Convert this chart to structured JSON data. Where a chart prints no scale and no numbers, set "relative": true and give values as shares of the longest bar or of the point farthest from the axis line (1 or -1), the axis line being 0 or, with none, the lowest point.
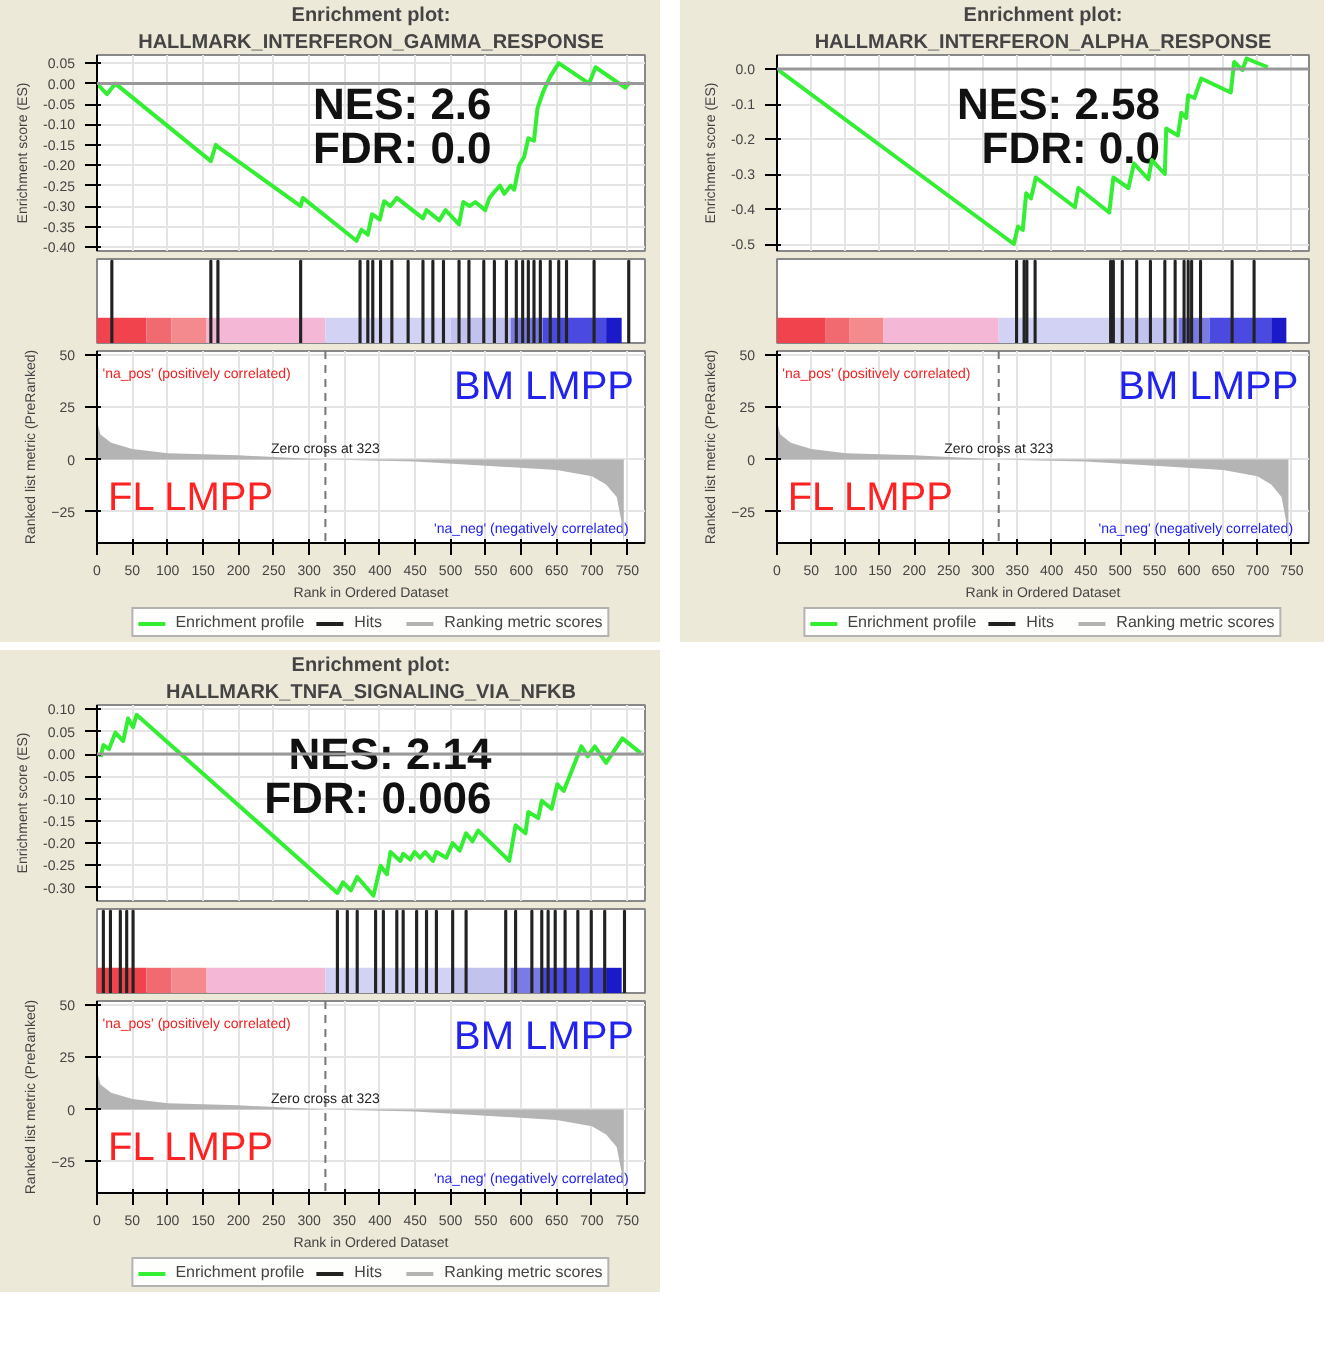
{
  "chart_data": [
    {
      "type": "line",
      "title": "Enrichment plot:",
      "subtitle": "HALLMARK_INTERFERON_GAMMA_RESPONSE",
      "ylabel": "Enrichment score (ES)",
      "xlim": [
        0,
        775
      ],
      "ylim": [
        -0.41,
        0.07
      ],
      "yticks": [
        {
          "value": 0.05,
          "label": "0.05"
        },
        {
          "value": 0,
          "label": "0.00"
        },
        {
          "value": -0.05,
          "label": "-0.05"
        },
        {
          "value": -0.1,
          "label": "-0.10"
        },
        {
          "value": -0.15,
          "label": "-0.15"
        },
        {
          "value": -0.2,
          "label": "-0.20"
        },
        {
          "value": -0.25,
          "label": "-0.25"
        },
        {
          "value": -0.3,
          "label": "-0.30"
        },
        {
          "value": -0.35,
          "label": "-0.35"
        },
        {
          "value": -0.4,
          "label": "-0.40"
        }
      ],
      "xticks": [
        0,
        50,
        100,
        150,
        200,
        250,
        300,
        350,
        400,
        450,
        500,
        550,
        600,
        650,
        700,
        750
      ],
      "tick_labels": "y",
      "grid": true,
      "annotations": [
        "NES: 2.6",
        "FDR: 0.0"
      ],
      "series": [
        {
          "name": "Enrichment profile",
          "color": "#33ee33",
          "x": [
            0,
            14,
            26,
            161,
            168,
            171,
            288,
            291,
            367,
            374,
            383,
            389,
            400,
            406,
            415,
            424,
            461,
            466,
            484,
            493,
            512,
            518,
            527,
            535,
            549,
            555,
            562,
            570,
            576,
            585,
            590,
            597,
            604,
            610,
            618,
            623,
            631,
            641,
            653,
            696,
            705,
            747,
            754
          ],
          "values": [
            0,
            -0.026,
            0,
            -0.19,
            -0.15,
            -0.155,
            -0.3,
            -0.28,
            -0.385,
            -0.358,
            -0.37,
            -0.32,
            -0.333,
            -0.288,
            -0.3,
            -0.28,
            -0.33,
            -0.31,
            -0.335,
            -0.31,
            -0.345,
            -0.29,
            -0.3,
            -0.29,
            -0.31,
            -0.28,
            -0.265,
            -0.25,
            -0.27,
            -0.25,
            -0.26,
            -0.2,
            -0.18,
            -0.134,
            -0.14,
            -0.06,
            -0.02,
            0.017,
            0.05,
            0,
            0.04,
            -0.01,
            0.004
          ]
        }
      ]
    },
    {
      "type": "bar",
      "relative": true,
      "xlim": [
        0,
        775
      ],
      "tick_labels": false,
      "bands": [
        {
          "axis": "x",
          "from": 0,
          "to": 70,
          "color": "#f0434d"
        },
        {
          "axis": "x",
          "from": 70,
          "to": 105,
          "color": "#f06a70"
        },
        {
          "axis": "x",
          "from": 105,
          "to": 155,
          "color": "#f48a8e"
        },
        {
          "axis": "x",
          "from": 155,
          "to": 323,
          "color": "#f5b7d6"
        },
        {
          "axis": "x",
          "from": 323,
          "to": 500,
          "color": "#d2d2f4"
        },
        {
          "axis": "x",
          "from": 500,
          "to": 585,
          "color": "#c2c2ef"
        },
        {
          "axis": "x",
          "from": 585,
          "to": 630,
          "color": "#7b7be6"
        },
        {
          "axis": "x",
          "from": 630,
          "to": 720,
          "color": "#4a4ae0"
        },
        {
          "axis": "x",
          "from": 720,
          "to": 742,
          "color": "#1a1ac8"
        }
      ],
      "series": [
        {
          "name": "Hits",
          "color": "#222222",
          "x": [
            21,
            161,
            171,
            288,
            372,
            383,
            390,
            401,
            417,
            440,
            461,
            475,
            490,
            512,
            526,
            547,
            562,
            579,
            593,
            602,
            610,
            618,
            627,
            641,
            653,
            664,
            703,
            752
          ],
          "values": [
            1,
            1,
            1,
            1,
            1,
            1,
            1,
            1,
            1,
            1,
            1,
            1,
            1,
            1,
            1,
            1,
            1,
            1,
            1,
            1,
            1,
            1,
            1,
            1,
            1,
            1,
            1,
            1
          ]
        }
      ]
    },
    {
      "type": "area",
      "xlabel": "Rank in Ordered Dataset",
      "ylabel": "Ranked list metric (PreRanked)",
      "xlim": [
        0,
        775
      ],
      "ylim": [
        -40,
        52
      ],
      "xticks": [
        0,
        50,
        100,
        150,
        200,
        250,
        300,
        350,
        400,
        450,
        500,
        550,
        600,
        650,
        700,
        750
      ],
      "yticks": [
        50,
        25,
        0,
        -25
      ],
      "grid": true,
      "legend": "bottom",
      "ref_lines": [
        {
          "axis": "x",
          "value": 323,
          "label": "Zero cross at 323",
          "line_style": "dashed"
        }
      ],
      "annotations": [
        "'na_pos' (positively correlated)",
        "'na_neg' (negatively correlated)",
        "FL LMPP",
        "BM LMPP"
      ],
      "series": [
        {
          "name": "Ranking metric scores",
          "color": "#b4b4b4",
          "x": [
            0,
            5,
            20,
            50,
            100,
            200,
            323,
            450,
            550,
            650,
            700,
            720,
            735,
            742,
            745
          ],
          "values": [
            18,
            12,
            8,
            5,
            3,
            2,
            0,
            -1,
            -3,
            -5,
            -8,
            -12,
            -18,
            -30,
            -40
          ]
        }
      ]
    },
    {
      "type": "line",
      "title": "Enrichment plot:",
      "subtitle": "HALLMARK_INTERFERON_ALPHA_RESPONSE",
      "ylabel": "Enrichment score (ES)",
      "xlim": [
        0,
        775
      ],
      "ylim": [
        -0.52,
        0.04
      ],
      "yticks": [
        {
          "value": 0,
          "label": "0.0"
        },
        {
          "value": -0.1,
          "label": "-0.1"
        },
        {
          "value": -0.2,
          "label": "-0.2"
        },
        {
          "value": -0.3,
          "label": "-0.3"
        },
        {
          "value": -0.4,
          "label": "-0.4"
        },
        {
          "value": -0.5,
          "label": "-0.5"
        }
      ],
      "xticks": [
        0,
        50,
        100,
        150,
        200,
        250,
        300,
        350,
        400,
        450,
        500,
        550,
        600,
        650,
        700,
        750
      ],
      "tick_labels": "y",
      "grid": true,
      "annotations": [
        "NES: 2.58",
        "FDR: 0.0"
      ],
      "series": [
        {
          "name": "Enrichment profile",
          "color": "#33ee33",
          "x": [
            0,
            345,
            351,
            358,
            363,
            370,
            377,
            434,
            439,
            484,
            490,
            512,
            520,
            541,
            546,
            565,
            567,
            584,
            589,
            596,
            599,
            608,
            618,
            661,
            666,
            678,
            684,
            715
          ],
          "values": [
            0,
            -0.5,
            -0.45,
            -0.46,
            -0.355,
            -0.37,
            -0.31,
            -0.395,
            -0.34,
            -0.41,
            -0.31,
            -0.34,
            -0.27,
            -0.315,
            -0.26,
            -0.3,
            -0.17,
            -0.19,
            -0.125,
            -0.14,
            -0.075,
            -0.083,
            -0.027,
            -0.067,
            0.02,
            -0.003,
            0.03,
            0.005
          ]
        }
      ]
    },
    {
      "type": "bar",
      "relative": true,
      "xlim": [
        0,
        775
      ],
      "tick_labels": false,
      "bands": [
        {
          "axis": "x",
          "from": 0,
          "to": 70,
          "color": "#f0434d"
        },
        {
          "axis": "x",
          "from": 70,
          "to": 105,
          "color": "#f06a70"
        },
        {
          "axis": "x",
          "from": 105,
          "to": 155,
          "color": "#f48a8e"
        },
        {
          "axis": "x",
          "from": 155,
          "to": 323,
          "color": "#f5b7d6"
        },
        {
          "axis": "x",
          "from": 323,
          "to": 500,
          "color": "#d2d2f4"
        },
        {
          "axis": "x",
          "from": 500,
          "to": 585,
          "color": "#c2c2ef"
        },
        {
          "axis": "x",
          "from": 585,
          "to": 630,
          "color": "#7b7be6"
        },
        {
          "axis": "x",
          "from": 630,
          "to": 720,
          "color": "#4a4ae0"
        },
        {
          "axis": "x",
          "from": 720,
          "to": 742,
          "color": "#1a1ac8"
        }
      ],
      "series": [
        {
          "name": "Hits",
          "color": "#222222",
          "x": [
            349,
            360,
            364,
            376,
            486,
            490,
            503,
            524,
            544,
            565,
            580,
            593,
            599,
            604,
            617,
            663,
            695
          ],
          "values": [
            1,
            1,
            1,
            1,
            1,
            1,
            1,
            1,
            1,
            1,
            1,
            1,
            1,
            1,
            1,
            1,
            1
          ]
        }
      ]
    },
    {
      "type": "area",
      "xlabel": "Rank in Ordered Dataset",
      "ylabel": "Ranked list metric (PreRanked)",
      "xlim": [
        0,
        775
      ],
      "ylim": [
        -40,
        52
      ],
      "xticks": [
        0,
        50,
        100,
        150,
        200,
        250,
        300,
        350,
        400,
        450,
        500,
        550,
        600,
        650,
        700,
        750
      ],
      "yticks": [
        50,
        25,
        0,
        -25
      ],
      "grid": true,
      "legend": "bottom",
      "ref_lines": [
        {
          "axis": "x",
          "value": 323,
          "label": "Zero cross at 323",
          "line_style": "dashed"
        }
      ],
      "annotations": [
        "'na_pos' (positively correlated)",
        "'na_neg' (negatively correlated)",
        "FL LMPP",
        "BM LMPP"
      ],
      "series": [
        {
          "name": "Ranking metric scores",
          "color": "#b4b4b4",
          "x": [
            0,
            5,
            20,
            50,
            100,
            200,
            323,
            450,
            550,
            650,
            700,
            720,
            735,
            742,
            745
          ],
          "values": [
            18,
            12,
            8,
            5,
            3,
            2,
            0,
            -1,
            -3,
            -5,
            -8,
            -12,
            -18,
            -30,
            -40
          ]
        }
      ]
    },
    {
      "type": "line",
      "title": "Enrichment plot:",
      "subtitle": "HALLMARK_TNFA_SIGNALING_VIA_NFKB",
      "ylabel": "Enrichment score (ES)",
      "xlim": [
        0,
        775
      ],
      "ylim": [
        -0.33,
        0.11
      ],
      "yticks": [
        {
          "value": 0.1,
          "label": "0.10"
        },
        {
          "value": 0.05,
          "label": "0.05"
        },
        {
          "value": 0,
          "label": "0.00"
        },
        {
          "value": -0.05,
          "label": "-0.05"
        },
        {
          "value": -0.1,
          "label": "-0.10"
        },
        {
          "value": -0.15,
          "label": "-0.15"
        },
        {
          "value": -0.2,
          "label": "-0.20"
        },
        {
          "value": -0.25,
          "label": "-0.25"
        },
        {
          "value": -0.3,
          "label": "-0.30"
        }
      ],
      "xticks": [
        0,
        50,
        100,
        150,
        200,
        250,
        300,
        350,
        400,
        450,
        500,
        550,
        600,
        650,
        700,
        750
      ],
      "tick_labels": "y",
      "grid": true,
      "annotations": [
        "NES: 2.14",
        "FDR: 0.006"
      ],
      "series": [
        {
          "name": "Enrichment profile",
          "color": "#33ee33",
          "x": [
            5,
            9,
            17,
            26,
            37,
            44,
            51,
            56,
            340,
            348,
            359,
            368,
            391,
            401,
            410,
            415,
            429,
            433,
            443,
            449,
            457,
            464,
            475,
            480,
            494,
            503,
            513,
            522,
            531,
            539,
            583,
            592,
            606,
            610,
            624,
            629,
            643,
            651,
            660,
            685,
            694,
            704,
            720,
            743,
            769
          ],
          "values": [
            -0.007,
            0.02,
            0.011,
            0.048,
            0.029,
            0.08,
            0.06,
            0.088,
            -0.312,
            -0.288,
            -0.306,
            -0.276,
            -0.318,
            -0.251,
            -0.27,
            -0.22,
            -0.24,
            -0.224,
            -0.237,
            -0.22,
            -0.233,
            -0.22,
            -0.24,
            -0.22,
            -0.233,
            -0.2,
            -0.217,
            -0.178,
            -0.196,
            -0.172,
            -0.24,
            -0.16,
            -0.178,
            -0.13,
            -0.144,
            -0.105,
            -0.123,
            -0.068,
            -0.083,
            0.017,
            -0.005,
            0.017,
            -0.02,
            0.035,
            0.002
          ]
        }
      ]
    },
    {
      "type": "bar",
      "relative": true,
      "xlim": [
        0,
        775
      ],
      "tick_labels": false,
      "bands": [
        {
          "axis": "x",
          "from": 0,
          "to": 70,
          "color": "#f0434d"
        },
        {
          "axis": "x",
          "from": 70,
          "to": 105,
          "color": "#f06a70"
        },
        {
          "axis": "x",
          "from": 105,
          "to": 155,
          "color": "#f48a8e"
        },
        {
          "axis": "x",
          "from": 155,
          "to": 323,
          "color": "#f5b7d6"
        },
        {
          "axis": "x",
          "from": 323,
          "to": 500,
          "color": "#d2d2f4"
        },
        {
          "axis": "x",
          "from": 500,
          "to": 585,
          "color": "#c2c2ef"
        },
        {
          "axis": "x",
          "from": 585,
          "to": 630,
          "color": "#7b7be6"
        },
        {
          "axis": "x",
          "from": 630,
          "to": 720,
          "color": "#4a4ae0"
        },
        {
          "axis": "x",
          "from": 720,
          "to": 742,
          "color": "#1a1ac8"
        }
      ],
      "series": [
        {
          "name": "Hits",
          "color": "#222222",
          "x": [
            9,
            19,
            33,
            42,
            51,
            340,
            354,
            368,
            394,
            405,
            424,
            433,
            452,
            466,
            480,
            503,
            522,
            578,
            592,
            615,
            629,
            638,
            648,
            662,
            680,
            699,
            718,
            746
          ],
          "values": [
            1,
            1,
            1,
            1,
            1,
            1,
            1,
            1,
            1,
            1,
            1,
            1,
            1,
            1,
            1,
            1,
            1,
            1,
            1,
            1,
            1,
            1,
            1,
            1,
            1,
            1,
            1,
            1
          ]
        }
      ]
    },
    {
      "type": "area",
      "xlabel": "Rank in Ordered Dataset",
      "ylabel": "Ranked list metric (PreRanked)",
      "xlim": [
        0,
        775
      ],
      "ylim": [
        -40,
        52
      ],
      "xticks": [
        0,
        50,
        100,
        150,
        200,
        250,
        300,
        350,
        400,
        450,
        500,
        550,
        600,
        650,
        700,
        750
      ],
      "yticks": [
        50,
        25,
        0,
        -25
      ],
      "grid": true,
      "legend": "bottom",
      "ref_lines": [
        {
          "axis": "x",
          "value": 323,
          "label": "Zero cross at 323",
          "line_style": "dashed"
        }
      ],
      "annotations": [
        "'na_pos' (positively correlated)",
        "'na_neg' (negatively correlated)",
        "FL LMPP",
        "BM LMPP"
      ],
      "series": [
        {
          "name": "Ranking metric scores",
          "color": "#b4b4b4",
          "x": [
            0,
            5,
            20,
            50,
            100,
            200,
            323,
            450,
            550,
            650,
            700,
            720,
            735,
            742,
            745
          ],
          "values": [
            18,
            12,
            8,
            5,
            3,
            2,
            0,
            -1,
            -3,
            -5,
            -8,
            -12,
            -18,
            -30,
            -40
          ]
        }
      ]
    }
  ]
}
